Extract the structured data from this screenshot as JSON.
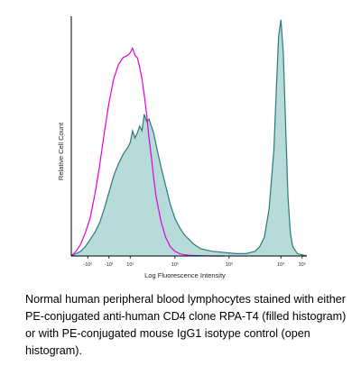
{
  "chart_data": {
    "type": "area",
    "xlabel": "Log Fluorescence Intensity",
    "ylabel": "Relative Cell Count",
    "x_scale": "log",
    "x_tick_labels": [
      "-10²",
      "-10¹",
      "10¹",
      "10²",
      "10³",
      "10⁴",
      "10⁵"
    ],
    "grid": false,
    "series": [
      {
        "style": "filled",
        "color": "#2a7a7c",
        "fill_color": "#b6dbd8",
        "x": [
          0.0,
          0.02,
          0.04,
          0.06,
          0.08,
          0.1,
          0.12,
          0.14,
          0.16,
          0.18,
          0.2,
          0.22,
          0.24,
          0.25,
          0.26,
          0.27,
          0.28,
          0.29,
          0.3,
          0.31,
          0.32,
          0.33,
          0.34,
          0.35,
          0.36,
          0.38,
          0.4,
          0.42,
          0.44,
          0.46,
          0.48,
          0.5,
          0.52,
          0.55,
          0.6,
          0.65,
          0.7,
          0.74,
          0.78,
          0.8,
          0.82,
          0.84,
          0.86,
          0.87,
          0.88,
          0.89,
          0.9,
          0.91,
          0.92,
          0.93,
          0.94,
          0.96,
          1.0
        ],
        "y": [
          0.0,
          0.01,
          0.02,
          0.04,
          0.07,
          0.1,
          0.14,
          0.2,
          0.27,
          0.34,
          0.39,
          0.43,
          0.46,
          0.48,
          0.53,
          0.5,
          0.52,
          0.55,
          0.53,
          0.6,
          0.57,
          0.58,
          0.55,
          0.52,
          0.47,
          0.38,
          0.3,
          0.22,
          0.16,
          0.12,
          0.09,
          0.07,
          0.05,
          0.03,
          0.02,
          0.015,
          0.01,
          0.01,
          0.02,
          0.04,
          0.08,
          0.2,
          0.45,
          0.7,
          0.93,
          1.0,
          0.86,
          0.55,
          0.25,
          0.1,
          0.04,
          0.01,
          0.0
        ]
      },
      {
        "style": "open",
        "color": "#e100e1",
        "x": [
          0.0,
          0.02,
          0.04,
          0.06,
          0.08,
          0.1,
          0.12,
          0.14,
          0.16,
          0.18,
          0.2,
          0.22,
          0.24,
          0.25,
          0.26,
          0.27,
          0.28,
          0.29,
          0.3,
          0.31,
          0.32,
          0.33,
          0.34,
          0.35,
          0.36,
          0.38,
          0.4,
          0.42,
          0.44,
          0.46,
          0.48,
          0.5,
          0.52,
          0.55,
          0.6,
          0.65
        ],
        "y": [
          0.0,
          0.02,
          0.05,
          0.1,
          0.16,
          0.26,
          0.38,
          0.52,
          0.65,
          0.75,
          0.81,
          0.84,
          0.85,
          0.86,
          0.88,
          0.85,
          0.84,
          0.8,
          0.75,
          0.68,
          0.6,
          0.5,
          0.42,
          0.33,
          0.25,
          0.15,
          0.08,
          0.04,
          0.02,
          0.01,
          0.005,
          0.003,
          0.002,
          0.001,
          0.0,
          0.0
        ]
      }
    ]
  },
  "caption": "Normal human peripheral blood lymphocytes stained with either PE-conjugated anti-human CD4 clone RPA-T4 (filled histogram) or with PE-conjugated mouse IgG1 isotype control (open histogram)."
}
